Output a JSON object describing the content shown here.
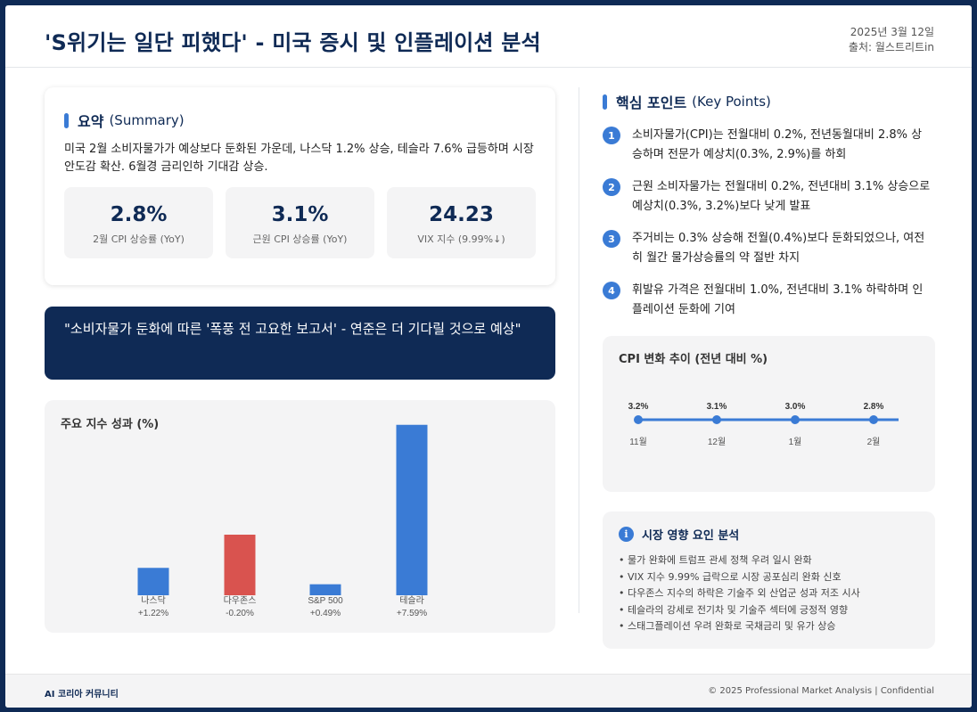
{
  "header": {
    "title": "'S위기는 일단 피했다' - 미국 증시 및 인플레이션 분석",
    "date": "2025년 3월 12일",
    "source": "출처: 월스트리트in"
  },
  "summary": {
    "title": "요약",
    "title_en": "(Summary)",
    "text": "미국 2월 소비자물가가 예상보다 둔화된 가운데, 나스닥 1.2% 상승, 테슬라 7.6% 급등하며 시장 안도감 확산. 6월경 금리인하 기대감 상승.",
    "stats": [
      {
        "value": "2.8%",
        "label": "2월 CPI 상승률 (YoY)"
      },
      {
        "value": "3.1%",
        "label": "근원 CPI 상승률 (YoY)"
      },
      {
        "value": "24.23",
        "label": "VIX 지수 (9.99%↓)"
      }
    ]
  },
  "quote": "\"소비자물가 둔화에 따른 '폭풍 전 고요한 보고서' - 연준은 더 기다릴 것으로 예상\"",
  "index_chart": {
    "title": "주요 지수 성과 (%)"
  },
  "key_points": {
    "title": "핵심 포인트",
    "title_en": "(Key Points)",
    "items": [
      {
        "num": "1",
        "text": "소비자물가(CPI)는 전월대비 0.2%, 전년동월대비 2.8% 상승하며 전문가 예상치(0.3%, 2.9%)를 하회"
      },
      {
        "num": "2",
        "text": "근원 소비자물가는 전월대비 0.2%, 전년대비 3.1% 상승으로 예상치(0.3%, 3.2%)보다 낮게 발표"
      },
      {
        "num": "3",
        "text": "주거비는 0.3% 상승해 전월(0.4%)보다 둔화되었으나, 여전히 월간 물가상승률의 약 절반 차지"
      },
      {
        "num": "4",
        "text": "휘발유 가격은 전월대비 1.0%, 전년대비 3.1% 하락하며 인플레이션 둔화에 기여"
      }
    ]
  },
  "cpi_chart": {
    "title": "CPI 변화 추이 (전년 대비 %)"
  },
  "factors": {
    "title": "시장 영향 요인 분석",
    "items": [
      "• 물가 완화에 트럼프 관세 정책 우려 일시 완화",
      "• VIX 지수 9.99% 급락으로 시장 공포심리 완화 신호",
      "• 다우존스 지수의 하락은 기술주 외 산업군 성과 저조 시사",
      "• 테슬라의 강세로 전기차 및 기술주 섹터에 긍정적 영향",
      "• 스태그플레이션 우려 완화로 국채금리 및 유가 상승"
    ]
  },
  "footer": {
    "left": "AI 코리아 커뮤니티",
    "right": "© 2025 Professional Market Analysis | Confidential"
  },
  "colors": {
    "navy": "#0f2a55",
    "accent_blue": "#3a7bd5",
    "negative_red": "#d9534f"
  },
  "chart_data": [
    {
      "type": "bar",
      "title": "주요 지수 성과 (%)",
      "categories": [
        "나스닥",
        "다우존스",
        "S&P 500",
        "테슬라"
      ],
      "values": [
        1.22,
        -0.2,
        0.49,
        7.59
      ],
      "value_labels": [
        "+1.22%",
        "-0.20%",
        "+0.49%",
        "+7.59%"
      ],
      "colors": [
        "#3a7bd5",
        "#d9534f",
        "#3a7bd5",
        "#3a7bd5"
      ],
      "grid": false,
      "legend": "none"
    },
    {
      "type": "line",
      "title": "CPI 변화 추이 (전년 대비 %)",
      "x": [
        "11월",
        "12월",
        "1월",
        "2월"
      ],
      "values": [
        3.2,
        3.1,
        3.0,
        2.8
      ],
      "value_labels": [
        "3.2%",
        "3.1%",
        "3.0%",
        "2.8%"
      ],
      "grid": false,
      "legend": "none"
    }
  ]
}
